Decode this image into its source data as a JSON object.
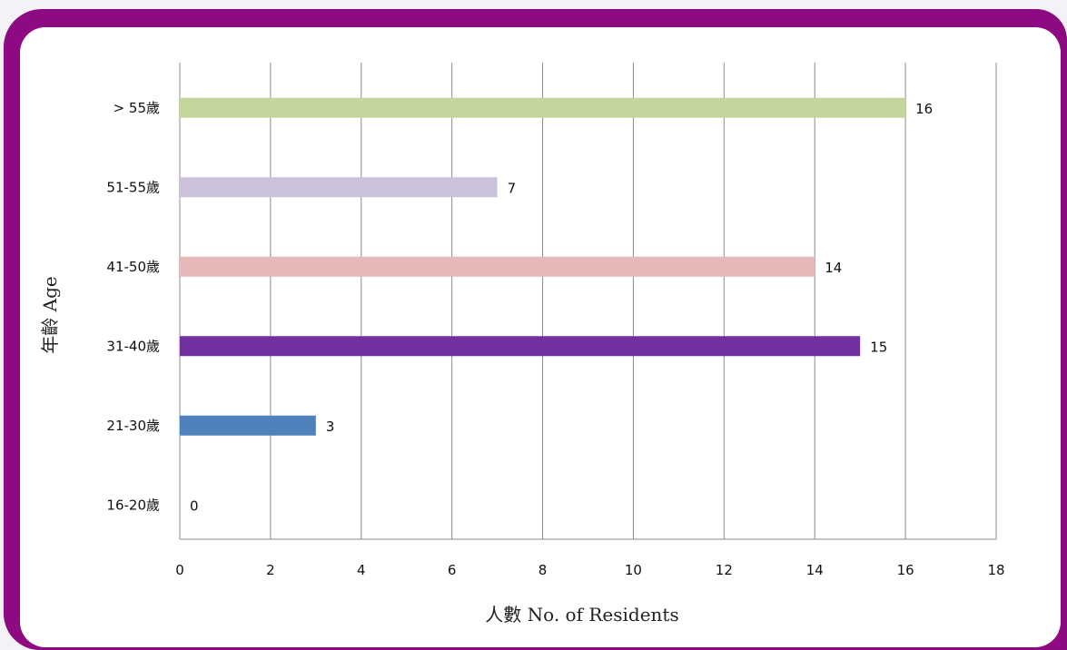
{
  "chart_data": {
    "type": "bar",
    "orientation": "horizontal",
    "categories": [
      "> 55歲",
      "51-55歲",
      "41-50歲",
      "31-40歲",
      "21-30歲",
      "16-20歲"
    ],
    "values": [
      16,
      7,
      14,
      15,
      3,
      0
    ],
    "colors": [
      "#c3d69b",
      "#ccc1da",
      "#e6b9b8",
      "#7030a0",
      "#4f81bd",
      "#9bbb59"
    ],
    "xlabel": "人數 No. of Residents",
    "ylabel": "年齡 Age",
    "xlim": [
      0,
      18
    ],
    "xticks": [
      0,
      2,
      4,
      6,
      8,
      10,
      12,
      14,
      16,
      18
    ],
    "grid": "vertical",
    "data_labels": true
  }
}
